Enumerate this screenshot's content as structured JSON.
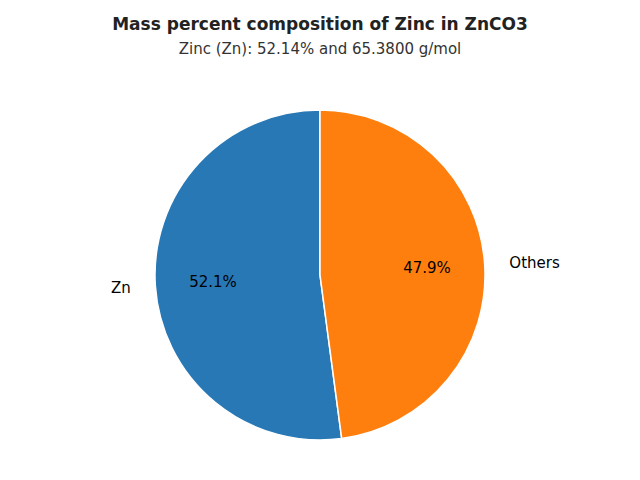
{
  "chart_data": {
    "type": "pie",
    "title": "Mass percent composition of Zinc in ZnCO3",
    "subtitle": "Zinc (Zn): 52.14% and 65.3800 g/mol",
    "categories": [
      "Zn",
      "Others"
    ],
    "values": [
      52.1,
      47.9
    ],
    "value_labels": [
      "52.1%",
      "47.9%"
    ],
    "colors": [
      "#2878b5",
      "#ff7f0e"
    ],
    "data_labels": true
  }
}
